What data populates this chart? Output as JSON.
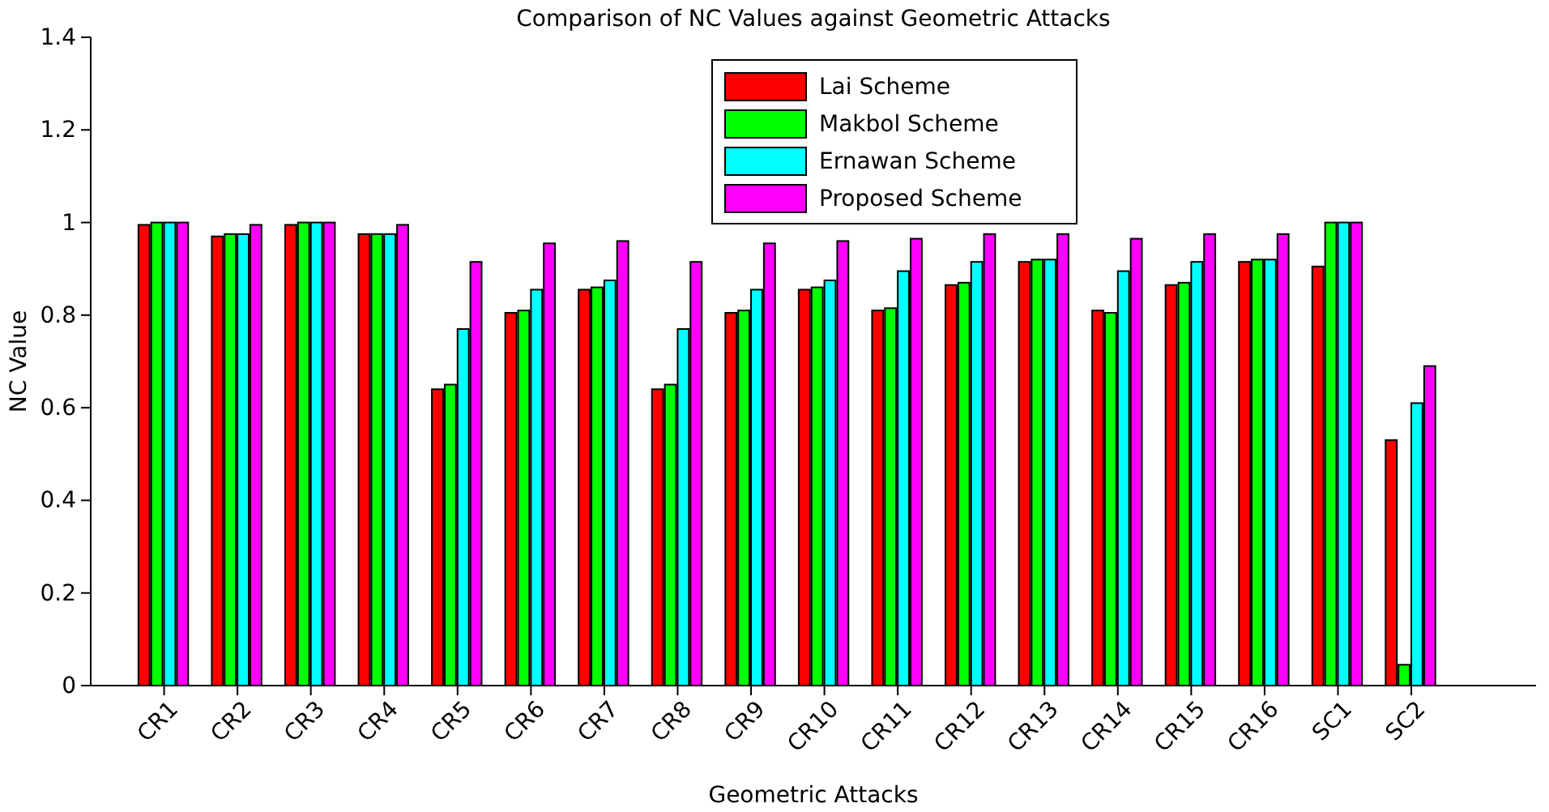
{
  "chart_data": {
    "type": "bar",
    "title": "Comparison of NC Values against Geometric Attacks",
    "xlabel": "Geometric Attacks",
    "ylabel": "NC Value",
    "categories": [
      "CR1",
      "CR2",
      "CR3",
      "CR4",
      "CR5",
      "CR6",
      "CR7",
      "CR8",
      "CR9",
      "CR10",
      "CR11",
      "CR12",
      "CR13",
      "CR14",
      "CR15",
      "CR16",
      "SC1",
      "SC2"
    ],
    "series": [
      {
        "name": "Lai Scheme",
        "color": "#ff0000",
        "values": [
          0.995,
          0.97,
          0.995,
          0.975,
          0.64,
          0.805,
          0.855,
          0.64,
          0.805,
          0.855,
          0.81,
          0.865,
          0.915,
          0.81,
          0.865,
          0.915,
          0.905,
          0.53
        ]
      },
      {
        "name": "Makbol Scheme",
        "color": "#00ff00",
        "values": [
          1.0,
          0.975,
          1.0,
          0.975,
          0.65,
          0.81,
          0.86,
          0.65,
          0.81,
          0.86,
          0.815,
          0.87,
          0.92,
          0.805,
          0.87,
          0.92,
          1.0,
          0.045
        ]
      },
      {
        "name": "Ernawan Scheme",
        "color": "#00ffff",
        "values": [
          1.0,
          0.975,
          1.0,
          0.975,
          0.77,
          0.855,
          0.875,
          0.77,
          0.855,
          0.875,
          0.895,
          0.915,
          0.92,
          0.895,
          0.915,
          0.92,
          1.0,
          0.61
        ]
      },
      {
        "name": "Proposed Scheme",
        "color": "#ff00ff",
        "values": [
          1.0,
          0.995,
          1.0,
          0.995,
          0.915,
          0.955,
          0.96,
          0.915,
          0.955,
          0.96,
          0.965,
          0.975,
          0.975,
          0.965,
          0.975,
          0.975,
          1.0,
          0.69
        ]
      }
    ],
    "ylim": [
      0,
      1.4
    ],
    "yticks": [
      0,
      0.2,
      0.4,
      0.6,
      0.8,
      1,
      1.2,
      1.4
    ],
    "grid": false,
    "legend": "top"
  }
}
